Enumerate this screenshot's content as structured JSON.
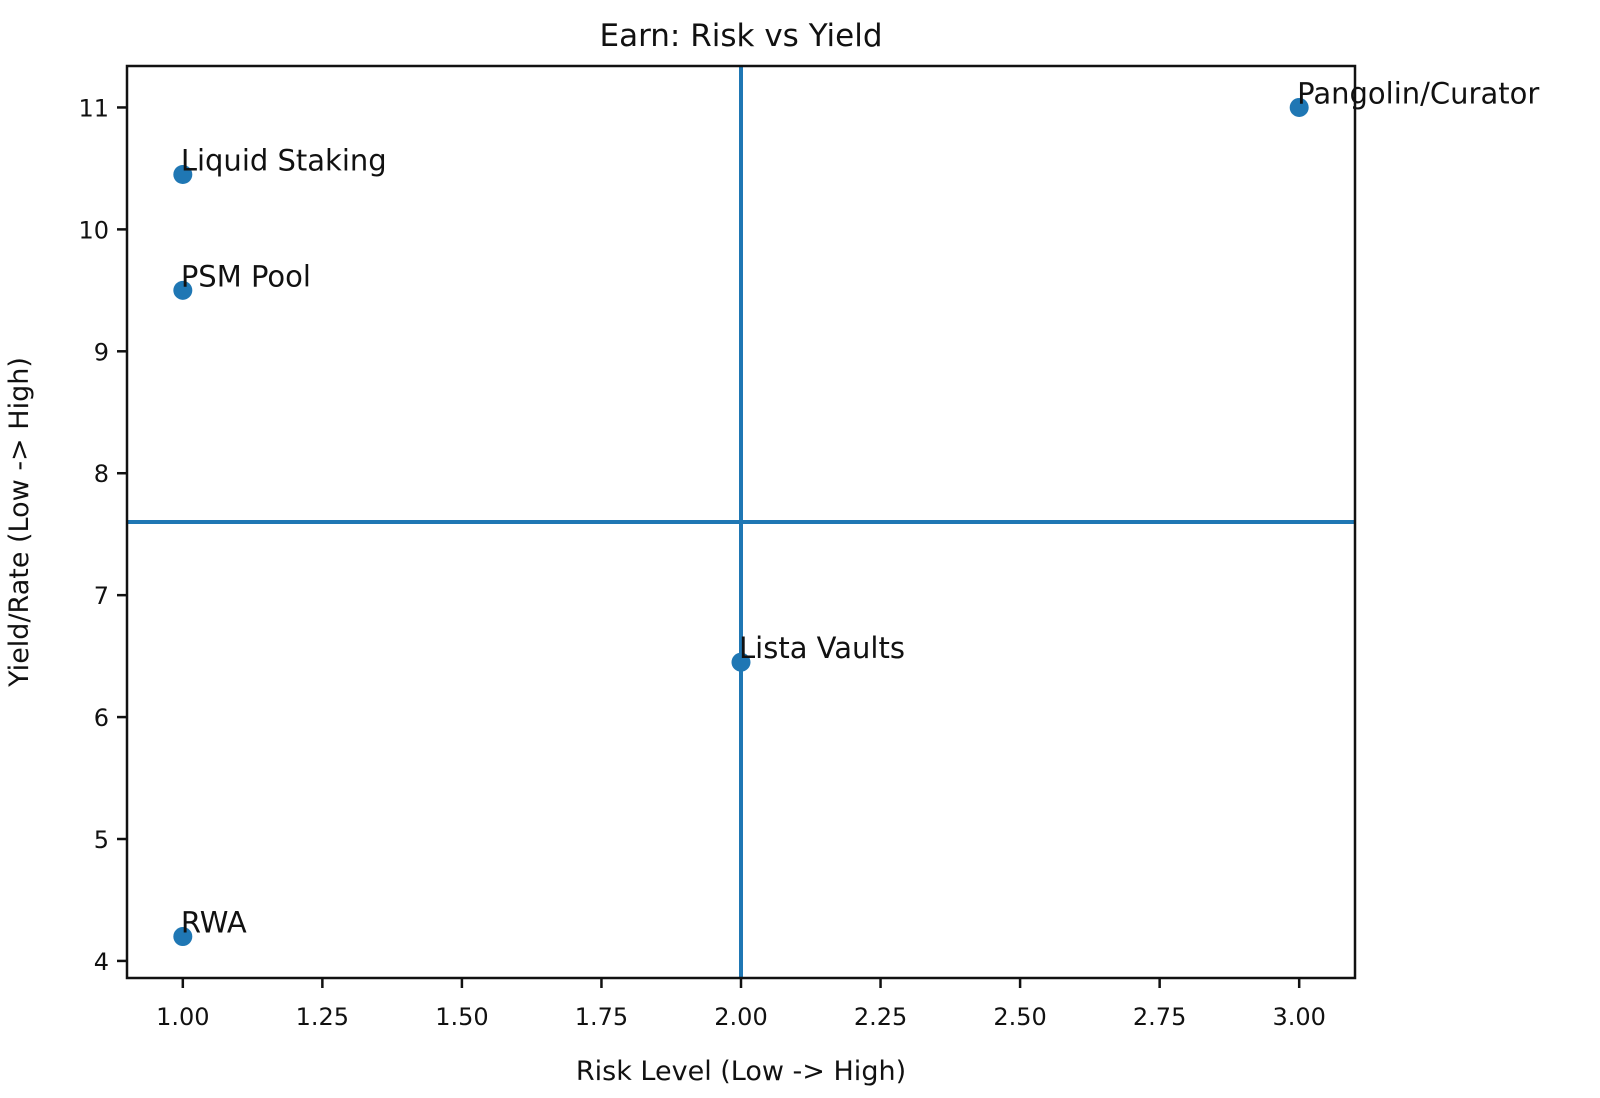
{
  "chart_data": {
    "type": "scatter",
    "title": "Earn: Risk vs Yield",
    "xlabel": "Risk Level (Low -> High)",
    "ylabel": "Yield/Rate (Low -> High)",
    "xlim": [
      0.9,
      3.1
    ],
    "ylim": [
      3.86,
      11.34
    ],
    "grid": false,
    "legend": null,
    "xticks": {
      "values": [
        1.0,
        1.25,
        1.5,
        1.75,
        2.0,
        2.25,
        2.5,
        2.75,
        3.0
      ],
      "labels": [
        "1.00",
        "1.25",
        "1.50",
        "1.75",
        "2.00",
        "2.25",
        "2.50",
        "2.75",
        "3.00"
      ]
    },
    "yticks": {
      "values": [
        4,
        5,
        6,
        7,
        8,
        9,
        10,
        11
      ],
      "labels": [
        "4",
        "5",
        "6",
        "7",
        "8",
        "9",
        "10",
        "11"
      ]
    },
    "points": [
      {
        "label": "Liquid Staking",
        "x": 1.0,
        "y": 10.45
      },
      {
        "label": "PSM Pool",
        "x": 1.0,
        "y": 9.5
      },
      {
        "label": "RWA",
        "x": 1.0,
        "y": 4.2
      },
      {
        "label": "Lista Vaults",
        "x": 2.0,
        "y": 6.45
      },
      {
        "label": "Pangolin/Curator",
        "x": 3.0,
        "y": 11.0
      }
    ],
    "reference_lines": [
      {
        "type": "vertical",
        "x": 2.0
      },
      {
        "type": "horizontal",
        "y": 7.6
      }
    ],
    "colors": {
      "marker": "#1f77b4",
      "reference_line": "#1f77b4",
      "axis": "#111111",
      "text": "#111111",
      "background": "#ffffff"
    }
  }
}
